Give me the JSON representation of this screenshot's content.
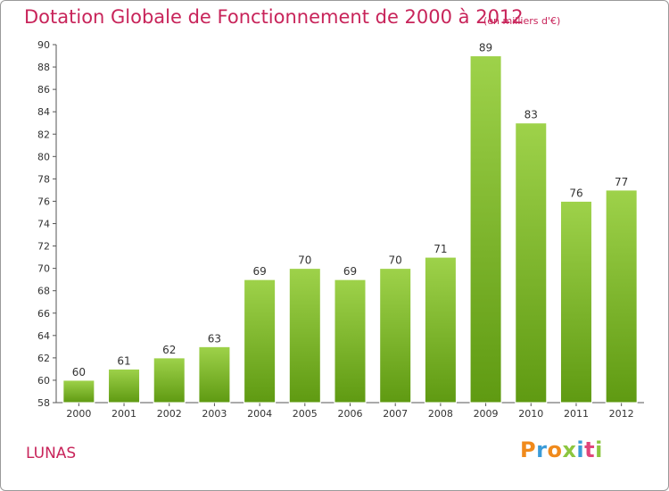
{
  "chart_data": {
    "type": "bar",
    "title": "Dotation Globale de Fonctionnement de 2000 à 2012",
    "subtitle": "(en milliers d'€)",
    "xlabel": "",
    "ylabel": "",
    "categories": [
      "2000",
      "2001",
      "2002",
      "2003",
      "2004",
      "2005",
      "2006",
      "2007",
      "2008",
      "2009",
      "2010",
      "2011",
      "2012"
    ],
    "values": [
      60,
      61,
      62,
      63,
      69,
      70,
      69,
      70,
      71,
      89,
      83,
      76,
      77
    ],
    "ylim": [
      58,
      90
    ],
    "yticks": [
      58,
      60,
      62,
      64,
      66,
      68,
      70,
      72,
      74,
      76,
      78,
      80,
      82,
      84,
      86,
      88,
      90
    ],
    "grid": false,
    "bar_color": "#7dbf2e"
  },
  "commune": "LUNAS",
  "brand": {
    "name": "Proxiti",
    "letters": [
      "P",
      "r",
      "o",
      "x",
      "i",
      "t",
      "i"
    ],
    "colors": [
      "#f08a1c",
      "#3a9bd8",
      "#f08a1c",
      "#8cc63f",
      "#3a9bd8",
      "#e0457b",
      "#8cc63f"
    ]
  }
}
